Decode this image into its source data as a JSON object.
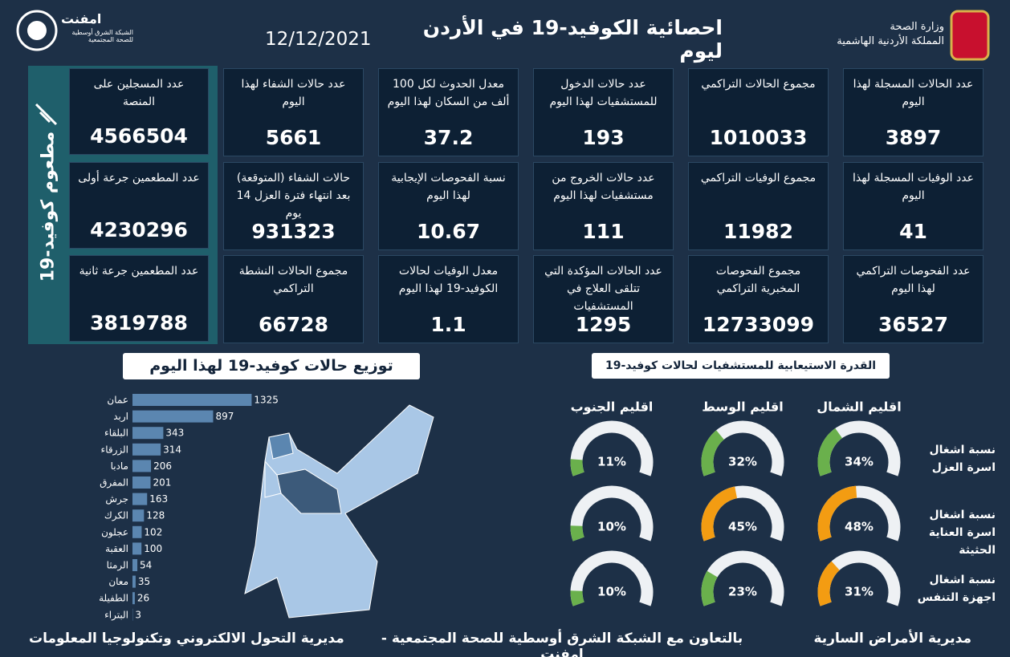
{
  "header": {
    "title": "احصائية الكوفيد-19 في الأردن ليوم",
    "date": "12/12/2021",
    "logo_name": "امفنت",
    "logo_subtitle": "الشبكة الشرق أوسطية للصحة المجتمعية",
    "ministry": "وزارة الصحة",
    "kingdom": "المملكة الأردنية الهاشمية"
  },
  "cards": [
    {
      "label": "عدد الحالات المسجلة لهذا اليوم",
      "value": 3897
    },
    {
      "label": "مجموع الحالات التراكمي",
      "value": 1010033
    },
    {
      "label": "عدد حالات الدخول للمستشفيات لهذا اليوم",
      "value": 193
    },
    {
      "label": "معدل الحدوث لكل 100 ألف من السكان لهذا اليوم",
      "value": 37.2
    },
    {
      "label": "عدد حالات الشفاء لهذا اليوم",
      "value": 5661
    },
    {
      "label": "عدد الوفيات المسجلة لهذا اليوم",
      "value": 41
    },
    {
      "label": "مجموع الوفيات التراكمي",
      "value": 11982
    },
    {
      "label": "عدد حالات الخروج من مستشفيات لهذا اليوم",
      "value": 111
    },
    {
      "label": "نسبة الفحوصات الإيجابية لهذا اليوم",
      "value": 10.67
    },
    {
      "label": "حالات الشفاء (المتوقعة) بعد انتهاء فترة العزل 14 يوم",
      "value": 931323
    },
    {
      "label": "عدد الفحوصات التراكمي لهذا اليوم",
      "value": 36527
    },
    {
      "label": "مجموع الفحوصات المخبرية التراكمي",
      "value": 12733099
    },
    {
      "label": "عدد الحالات المؤكدة التي تتلقى العلاج في المستشفيات",
      "value": 1295
    },
    {
      "label": "معدل الوفيات لحالات الكوفيد-19 لهذا اليوم",
      "value": 1.1
    },
    {
      "label": "مجموع الحالات النشطة التراكمي",
      "value": 66728
    }
  ],
  "vaccination": {
    "title": "مطعوم كوفيد-19",
    "cards": [
      {
        "label": "عدد المسجلين على المنصة",
        "value": 4566504
      },
      {
        "label": "عدد المطعمين جرعة أولى",
        "value": 4230296
      },
      {
        "label": "عدد المطعمين جرعة ثانية",
        "value": 3819788
      }
    ]
  },
  "chart_data": [
    {
      "type": "bar",
      "title": "توزيع حالات كوفيد-19 لهذا اليوم",
      "color": "#5b86b0",
      "categories": [
        "عمان",
        "اربد",
        "البلقاء",
        "الزرقاء",
        "مادبا",
        "المفرق",
        "جرش",
        "الكرك",
        "عجلون",
        "العقبة",
        "الرمثا",
        "معان",
        "الطفيلة",
        "البتراء"
      ],
      "values": [
        1325,
        897,
        343,
        314,
        206,
        201,
        163,
        128,
        102,
        100,
        54,
        35,
        26,
        3
      ]
    },
    {
      "type": "gauge",
      "title": "القدرة الاستيعابية للمستشفيات لحالات كوفيد-19",
      "ylim": [
        0,
        100
      ],
      "categories": [
        "نسبة اشغال اسرة العزل",
        "نسبة اشغال اسرة العناية الحثيثة",
        "نسبة اشغال اجهزة التنفس"
      ],
      "series": [
        {
          "name": "اقليم الشمال",
          "values": [
            34,
            48,
            31
          ],
          "value_labels": [
            "34%",
            "48%",
            "31%"
          ],
          "colors": [
            "#6ab04c",
            "#f39c12",
            "#f39c12"
          ]
        },
        {
          "name": "اقليم الوسط",
          "values": [
            32,
            45,
            23
          ],
          "value_labels": [
            "32%",
            "45%",
            "23%"
          ],
          "colors": [
            "#6ab04c",
            "#f39c12",
            "#6ab04c"
          ]
        },
        {
          "name": "اقليم الجنوب",
          "values": [
            11,
            10,
            10
          ],
          "value_labels": [
            "11%",
            "10%",
            "10%"
          ],
          "colors": [
            "#6ab04c",
            "#6ab04c",
            "#6ab04c"
          ]
        }
      ]
    }
  ],
  "footer": {
    "right": "مديرية الأمراض السارية",
    "center": "بالتعاون مع الشبكة الشرق أوسطية للصحة المجتمعية - إمفنت",
    "left": "مديرية التحول الالكتروني وتكنولوجيا المعلومات"
  }
}
